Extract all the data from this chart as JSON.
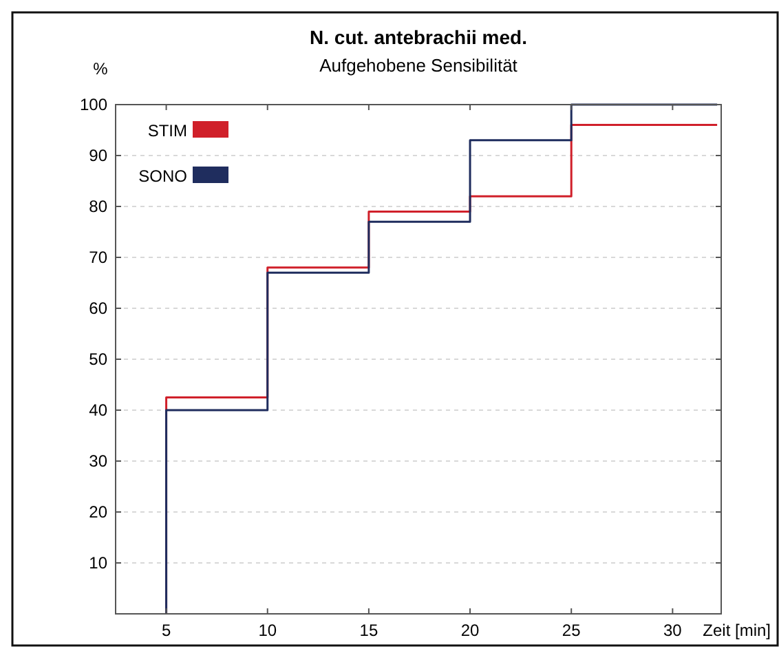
{
  "chart_data": {
    "type": "step",
    "title": "N. cut. antebrachii med.",
    "subtitle": "Aufgehobene Sensibilität",
    "ylabel": "%",
    "xlabel": "Zeit [min]",
    "x": [
      5,
      5,
      10,
      15,
      20,
      25,
      32.2
    ],
    "series": [
      {
        "name": "STIM",
        "color": "#d0202a",
        "values": [
          0,
          42.5,
          68,
          79,
          82,
          96,
          96
        ]
      },
      {
        "name": "SONO",
        "color": "#1f2d5e",
        "values": [
          0,
          40,
          67,
          77,
          93,
          100,
          100
        ]
      }
    ],
    "xlim": [
      2.5,
      32.4
    ],
    "xticks": [
      5,
      10,
      15,
      20,
      25,
      30
    ],
    "ylim": [
      0,
      100
    ],
    "yticks": [
      10,
      20,
      30,
      40,
      50,
      60,
      70,
      80,
      90,
      100
    ],
    "grid": "y",
    "legend": "top left"
  }
}
